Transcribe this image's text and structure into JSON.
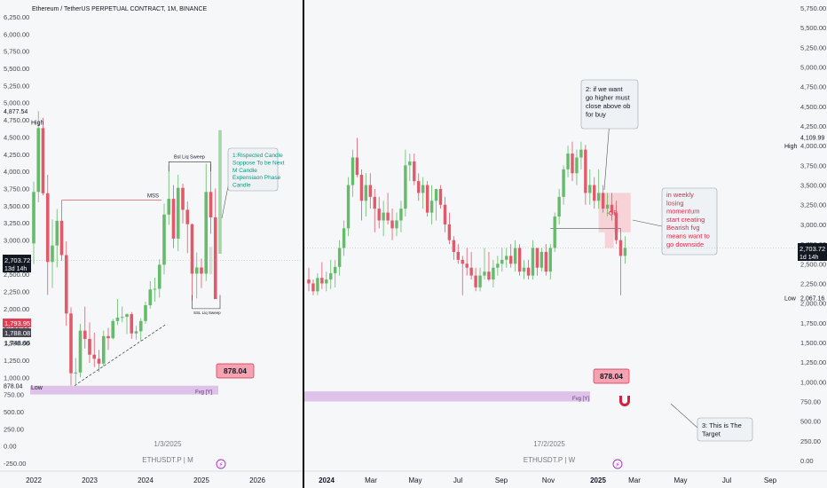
{
  "header": {
    "title": "Ethereum / TetherUS PERPETUAL CONTRACT, 1M, BINANCE"
  },
  "colors": {
    "up": "#66bb6a",
    "down": "#e05a6a",
    "fvg": "#d9b8e8",
    "annot_teal": "#089981",
    "annot_red": "#e0284a"
  },
  "left_panel": {
    "price_ticks": [
      "6,250.00",
      "6,000.00",
      "5,750.00",
      "5,500.00",
      "5,250.00",
      "5,000.00",
      "4,750.00",
      "4,500.00",
      "4,250.00",
      "4,000.00",
      "3,750.00",
      "3,500.00",
      "3,250.00",
      "3,000.00",
      "2,750.00",
      "2,500.00",
      "2,250.00",
      "2,000.00",
      "1,750.00",
      "1,500.00",
      "1,250.00",
      "1,000.00",
      "750.00",
      "500.00",
      "250.00",
      "0.00",
      "-250.00"
    ],
    "tick_values": [
      6250,
      6000,
      5750,
      5500,
      5250,
      5000,
      4750,
      4500,
      4250,
      4000,
      3750,
      3500,
      3250,
      3000,
      2750,
      2500,
      2250,
      2000,
      1750,
      1500,
      1250,
      1000,
      750,
      500,
      250,
      0,
      -250
    ],
    "high_label": "High",
    "high_price": "4,877.54",
    "low_label": "Low",
    "low_price": "878.04",
    "current_price": "2,703.72",
    "current_countdown": "13d 14h",
    "tag_price_1": "1,793.95",
    "tag_price_2": "1,788.08",
    "tag_price_3": "1,748.66",
    "x_ticks": [
      "2022",
      "2023",
      "2024",
      "2025",
      "2026"
    ],
    "x_tick_years": [
      2022,
      2023,
      2024,
      2025,
      2026
    ],
    "date_label": "1/3/2025",
    "symbol_label": "ETHUSDT.P | M",
    "annotations": {
      "mss": "MSS",
      "bsl": "Bsl Liq Sweep",
      "ssl": "SSL Liq Sweep",
      "note1": [
        "1:Rispected Candle",
        "Soppose To be Next",
        "M Candle",
        "Expensiaon Phase",
        "Candle"
      ],
      "fvg": "Fvg [Y]",
      "fvg_price": "878.04"
    }
  },
  "right_panel": {
    "price_ticks": [
      "5,750.00",
      "5,500.00",
      "5,250.00",
      "5,000.00",
      "4,750.00",
      "4,500.00",
      "4,250.00",
      "4,000.00",
      "3,750.00",
      "3,500.00",
      "3,250.00",
      "3,000.00",
      "2,750.00",
      "2,500.00",
      "2,250.00",
      "2,000.00",
      "1,750.00",
      "1,500.00",
      "1,250.00",
      "1,000.00",
      "750.00",
      "500.00",
      "250.00",
      "0.00"
    ],
    "tick_values": [
      5750,
      5500,
      5250,
      5000,
      4750,
      4500,
      4250,
      4000,
      3750,
      3500,
      3250,
      3000,
      2750,
      2500,
      2250,
      2000,
      1750,
      1500,
      1250,
      1000,
      750,
      500,
      250,
      0
    ],
    "high_label": "High",
    "high_price": "4,109.99",
    "low_label": "Low",
    "low_price": "2,067.16",
    "current_price": "2,703.72",
    "current_countdown": "1d 14h",
    "x_ticks": [
      "2024",
      "Mar",
      "May",
      "Jul",
      "Sep",
      "Nov",
      "2025",
      "Mar",
      "May",
      "Jul",
      "Sep"
    ],
    "date_label": "17/2/2025",
    "symbol_label": "ETHUSDT.P | W",
    "annotations": {
      "note2": [
        "2: if we want",
        "go higher must",
        "close above ob",
        "for buy"
      ],
      "ob": "-OB",
      "note_weekly": [
        "in weekly",
        "losing",
        "momentum",
        "start creating",
        "Bearish fvg",
        "means want to",
        "go downside"
      ],
      "note3": [
        "3: This is The",
        "Target"
      ],
      "fvg": "Fvg [Y]",
      "fvg_price": "878.04"
    }
  },
  "chart_data": [
    {
      "type": "candlestick",
      "title": "Ethereum / TetherUS PERPETUAL CONTRACT, 1M, BINANCE",
      "timeframe": "1M",
      "ylim": [
        -250,
        6250
      ],
      "x_range": [
        "2022",
        "2026"
      ],
      "candles": [
        {
          "o": 2950,
          "h": 3850,
          "l": 2650,
          "c": 3700
        },
        {
          "o": 3700,
          "h": 4877,
          "l": 3550,
          "c": 4630
        },
        {
          "o": 4630,
          "h": 4780,
          "l": 3650,
          "c": 3680
        },
        {
          "o": 3680,
          "h": 3950,
          "l": 2200,
          "c": 2680
        },
        {
          "o": 2680,
          "h": 3300,
          "l": 2300,
          "c": 2920
        },
        {
          "o": 2920,
          "h": 3450,
          "l": 2600,
          "c": 3280
        },
        {
          "o": 3280,
          "h": 3580,
          "l": 2700,
          "c": 2780
        },
        {
          "o": 2780,
          "h": 2980,
          "l": 1750,
          "c": 1930
        },
        {
          "o": 1930,
          "h": 2020,
          "l": 880,
          "c": 1060
        },
        {
          "o": 1060,
          "h": 1280,
          "l": 880,
          "c": 1070
        },
        {
          "o": 1070,
          "h": 1780,
          "l": 1000,
          "c": 1680
        },
        {
          "o": 1680,
          "h": 2030,
          "l": 1420,
          "c": 1560
        },
        {
          "o": 1560,
          "h": 1800,
          "l": 1210,
          "c": 1330
        },
        {
          "o": 1330,
          "h": 1650,
          "l": 1150,
          "c": 1270
        },
        {
          "o": 1270,
          "h": 1400,
          "l": 1080,
          "c": 1200
        },
        {
          "o": 1200,
          "h": 1680,
          "l": 1160,
          "c": 1600
        },
        {
          "o": 1600,
          "h": 1720,
          "l": 1400,
          "c": 1570
        },
        {
          "o": 1570,
          "h": 1850,
          "l": 1550,
          "c": 1820
        },
        {
          "o": 1820,
          "h": 2140,
          "l": 1760,
          "c": 1870
        },
        {
          "o": 1870,
          "h": 2030,
          "l": 1800,
          "c": 1880
        },
        {
          "o": 1880,
          "h": 1930,
          "l": 1630,
          "c": 1920
        },
        {
          "o": 1920,
          "h": 1950,
          "l": 1560,
          "c": 1640
        },
        {
          "o": 1640,
          "h": 1750,
          "l": 1550,
          "c": 1670
        },
        {
          "o": 1670,
          "h": 1860,
          "l": 1530,
          "c": 1820
        },
        {
          "o": 1820,
          "h": 2100,
          "l": 1780,
          "c": 2050
        },
        {
          "o": 2050,
          "h": 2400,
          "l": 2000,
          "c": 2280
        },
        {
          "o": 2280,
          "h": 2450,
          "l": 2100,
          "c": 2290
        },
        {
          "o": 2290,
          "h": 2720,
          "l": 2160,
          "c": 2640
        },
        {
          "o": 2640,
          "h": 3530,
          "l": 2500,
          "c": 3370
        },
        {
          "o": 3370,
          "h": 4090,
          "l": 3220,
          "c": 3600
        },
        {
          "o": 3600,
          "h": 3800,
          "l": 2880,
          "c": 3020
        },
        {
          "o": 3020,
          "h": 3950,
          "l": 2840,
          "c": 3760
        },
        {
          "o": 3760,
          "h": 3820,
          "l": 3240,
          "c": 3440
        },
        {
          "o": 3440,
          "h": 3560,
          "l": 2810,
          "c": 3230
        },
        {
          "o": 3230,
          "h": 3240,
          "l": 2120,
          "c": 2510
        },
        {
          "o": 2510,
          "h": 2820,
          "l": 2150,
          "c": 2600
        },
        {
          "o": 2600,
          "h": 2730,
          "l": 2300,
          "c": 2510
        },
        {
          "o": 2510,
          "h": 4110,
          "l": 2400,
          "c": 3700
        },
        {
          "o": 3700,
          "h": 4110,
          "l": 3090,
          "c": 3330
        },
        {
          "o": 3330,
          "h": 3750,
          "l": 2150,
          "c": 2140
        }
      ],
      "fvg_zone": {
        "low": 750,
        "high": 878
      },
      "mss_level": 3580
    },
    {
      "type": "candlestick",
      "timeframe": "1W",
      "ylim": [
        0,
        5750
      ],
      "x_range": [
        "2024",
        "Sep 2025"
      ],
      "candles": [
        {
          "o": 2300,
          "h": 2450,
          "l": 2150,
          "c": 2250
        },
        {
          "o": 2250,
          "h": 2300,
          "l": 2100,
          "c": 2150
        },
        {
          "o": 2150,
          "h": 2380,
          "l": 2100,
          "c": 2320
        },
        {
          "o": 2320,
          "h": 2520,
          "l": 2180,
          "c": 2250
        },
        {
          "o": 2250,
          "h": 2400,
          "l": 2150,
          "c": 2300
        },
        {
          "o": 2300,
          "h": 2550,
          "l": 2180,
          "c": 2380
        },
        {
          "o": 2380,
          "h": 2550,
          "l": 2200,
          "c": 2460
        },
        {
          "o": 2460,
          "h": 2800,
          "l": 2350,
          "c": 2700
        },
        {
          "o": 2700,
          "h": 3050,
          "l": 2600,
          "c": 2950
        },
        {
          "o": 2950,
          "h": 3600,
          "l": 2850,
          "c": 3500
        },
        {
          "o": 3500,
          "h": 3950,
          "l": 3350,
          "c": 3850
        },
        {
          "o": 3850,
          "h": 4100,
          "l": 3600,
          "c": 3630
        },
        {
          "o": 3630,
          "h": 3700,
          "l": 3050,
          "c": 3300
        },
        {
          "o": 3300,
          "h": 3650,
          "l": 3100,
          "c": 3500
        },
        {
          "o": 3500,
          "h": 3650,
          "l": 3200,
          "c": 3350
        },
        {
          "o": 3350,
          "h": 3450,
          "l": 2900,
          "c": 3200
        },
        {
          "o": 3200,
          "h": 3350,
          "l": 2950,
          "c": 3050
        },
        {
          "o": 3050,
          "h": 3300,
          "l": 2850,
          "c": 3150
        },
        {
          "o": 3150,
          "h": 3400,
          "l": 3000,
          "c": 3050
        },
        {
          "o": 3050,
          "h": 3200,
          "l": 2800,
          "c": 2950
        },
        {
          "o": 2950,
          "h": 3150,
          "l": 2850,
          "c": 3050
        },
        {
          "o": 3050,
          "h": 3300,
          "l": 2900,
          "c": 3200
        },
        {
          "o": 3200,
          "h": 3950,
          "l": 3100,
          "c": 3750
        },
        {
          "o": 3750,
          "h": 3900,
          "l": 3550,
          "c": 3800
        },
        {
          "o": 3800,
          "h": 3900,
          "l": 3500,
          "c": 3550
        },
        {
          "o": 3550,
          "h": 3650,
          "l": 3300,
          "c": 3400
        },
        {
          "o": 3400,
          "h": 3600,
          "l": 3200,
          "c": 3500
        },
        {
          "o": 3500,
          "h": 3550,
          "l": 3100,
          "c": 3150
        },
        {
          "o": 3150,
          "h": 3500,
          "l": 3000,
          "c": 3300
        },
        {
          "o": 3300,
          "h": 3400,
          "l": 3050,
          "c": 3450
        },
        {
          "o": 3450,
          "h": 3500,
          "l": 3200,
          "c": 3250
        },
        {
          "o": 3250,
          "h": 3350,
          "l": 2900,
          "c": 3000
        },
        {
          "o": 3000,
          "h": 3150,
          "l": 2750,
          "c": 2800
        },
        {
          "o": 2800,
          "h": 2850,
          "l": 2550,
          "c": 2650
        },
        {
          "o": 2650,
          "h": 2750,
          "l": 2500,
          "c": 2550
        },
        {
          "o": 2550,
          "h": 2600,
          "l": 2100,
          "c": 2500
        },
        {
          "o": 2500,
          "h": 2700,
          "l": 2350,
          "c": 2450
        },
        {
          "o": 2450,
          "h": 2650,
          "l": 2300,
          "c": 2350
        },
        {
          "o": 2350,
          "h": 2450,
          "l": 2150,
          "c": 2200
        },
        {
          "o": 2200,
          "h": 2450,
          "l": 2150,
          "c": 2350
        },
        {
          "o": 2350,
          "h": 2700,
          "l": 2300,
          "c": 2400
        },
        {
          "o": 2400,
          "h": 2650,
          "l": 2280,
          "c": 2300
        },
        {
          "o": 2300,
          "h": 2550,
          "l": 2200,
          "c": 2450
        },
        {
          "o": 2450,
          "h": 2600,
          "l": 2350,
          "c": 2500
        },
        {
          "o": 2500,
          "h": 2700,
          "l": 2400,
          "c": 2550
        },
        {
          "o": 2550,
          "h": 2700,
          "l": 2450,
          "c": 2600
        },
        {
          "o": 2600,
          "h": 2750,
          "l": 2450,
          "c": 2500
        },
        {
          "o": 2500,
          "h": 2800,
          "l": 2400,
          "c": 2700
        },
        {
          "o": 2700,
          "h": 2750,
          "l": 2350,
          "c": 2400
        },
        {
          "o": 2400,
          "h": 2550,
          "l": 2300,
          "c": 2450
        },
        {
          "o": 2450,
          "h": 2550,
          "l": 2300,
          "c": 2350
        },
        {
          "o": 2350,
          "h": 2800,
          "l": 2300,
          "c": 2700
        },
        {
          "o": 2700,
          "h": 2700,
          "l": 2350,
          "c": 2450
        },
        {
          "o": 2450,
          "h": 2700,
          "l": 2400,
          "c": 2650
        },
        {
          "o": 2650,
          "h": 2750,
          "l": 2350,
          "c": 2400
        },
        {
          "o": 2400,
          "h": 2750,
          "l": 2300,
          "c": 2700
        },
        {
          "o": 2700,
          "h": 3150,
          "l": 2650,
          "c": 3100
        },
        {
          "o": 3100,
          "h": 3450,
          "l": 3000,
          "c": 3350
        },
        {
          "o": 3350,
          "h": 3750,
          "l": 3250,
          "c": 3700
        },
        {
          "o": 3700,
          "h": 4000,
          "l": 3600,
          "c": 3900
        },
        {
          "o": 3900,
          "h": 4050,
          "l": 3550,
          "c": 3650
        },
        {
          "o": 3650,
          "h": 3950,
          "l": 3500,
          "c": 3850
        },
        {
          "o": 3850,
          "h": 4050,
          "l": 3700,
          "c": 3950
        },
        {
          "o": 3950,
          "h": 4010,
          "l": 3250,
          "c": 3400
        },
        {
          "o": 3400,
          "h": 3700,
          "l": 3250,
          "c": 3500
        },
        {
          "o": 3500,
          "h": 3600,
          "l": 3200,
          "c": 3300
        },
        {
          "o": 3300,
          "h": 3700,
          "l": 3200,
          "c": 3400
        },
        {
          "o": 3400,
          "h": 3500,
          "l": 3150,
          "c": 3200
        },
        {
          "o": 3200,
          "h": 3400,
          "l": 3100,
          "c": 3250
        },
        {
          "o": 3250,
          "h": 3400,
          "l": 3050,
          "c": 3150
        },
        {
          "o": 3150,
          "h": 3300,
          "l": 2750,
          "c": 2800
        },
        {
          "o": 2800,
          "h": 2950,
          "l": 2100,
          "c": 2600
        },
        {
          "o": 2600,
          "h": 2850,
          "l": 2500,
          "c": 2700
        }
      ],
      "fvg_zone": {
        "low": 750,
        "high": 878
      },
      "ob_zone": {
        "low": 2900,
        "high": 3400
      }
    }
  ]
}
